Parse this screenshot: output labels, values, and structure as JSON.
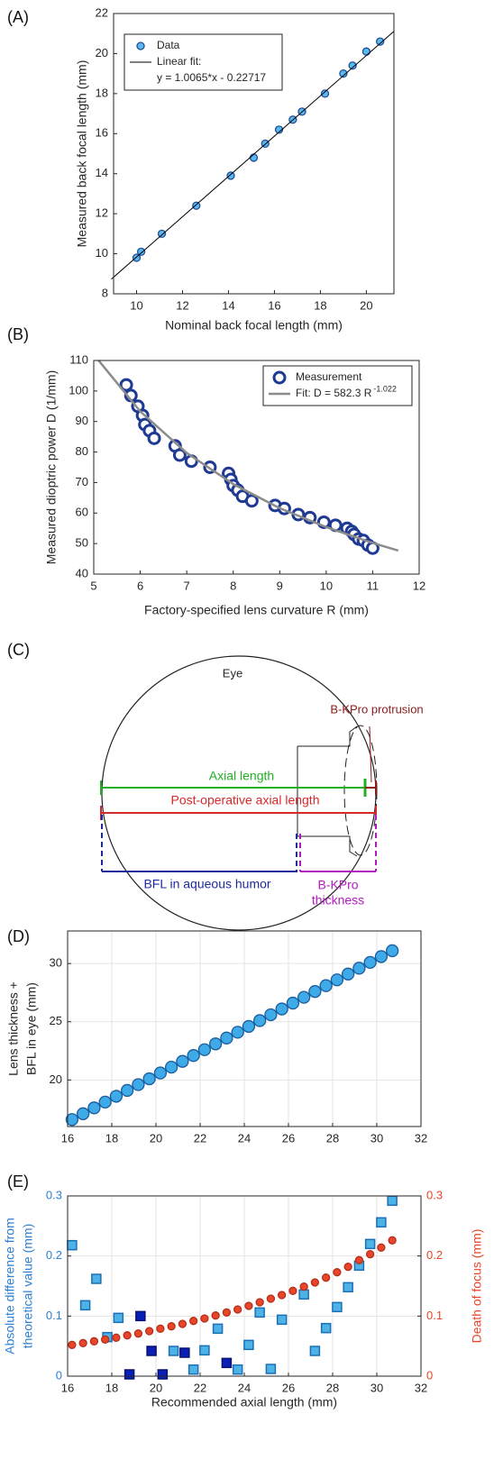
{
  "chart_data": [
    {
      "type": "scatter",
      "label": "(A)",
      "xlabel": "Nominal back focal length (mm)",
      "ylabel": [
        "Measured back focal length (mm)"
      ],
      "xlim": [
        9,
        21.2
      ],
      "ylim": [
        8,
        22
      ],
      "xticks": [
        10,
        12,
        14,
        16,
        18,
        20
      ],
      "yticks": [
        8,
        10,
        12,
        14,
        16,
        18,
        20,
        22
      ],
      "legend": "top-left",
      "legend_note": "y = 1.0065*x - 0.22717",
      "series": [
        {
          "name": "Data",
          "mode": "markers",
          "marker": "circle",
          "color": "#5ab8ec",
          "edgecolor": "#1f4e9a",
          "x": [
            10.0,
            10.2,
            11.1,
            12.6,
            14.1,
            15.1,
            15.6,
            16.2,
            16.8,
            17.2,
            18.2,
            19.0,
            19.4,
            20.0,
            20.6
          ],
          "values": [
            9.8,
            10.1,
            11.0,
            12.4,
            13.9,
            14.8,
            15.5,
            16.2,
            16.7,
            17.1,
            18.0,
            19.0,
            19.4,
            20.1,
            20.6
          ]
        },
        {
          "name": "Linear fit:",
          "mode": "line",
          "color": "#000000",
          "x": [
            8.9,
            21.2
          ],
          "values": [
            8.73,
            21.11
          ]
        }
      ]
    },
    {
      "type": "scatter",
      "label": "(B)",
      "xlabel": "Factory-specified lens curvature R (mm)",
      "ylabel": [
        "Measured dioptric power D (1/mm)"
      ],
      "xlim": [
        5,
        12
      ],
      "ylim": [
        40,
        110
      ],
      "xticks": [
        5,
        6,
        7,
        8,
        9,
        10,
        11,
        12
      ],
      "yticks": [
        40,
        50,
        60,
        70,
        80,
        90,
        100,
        110
      ],
      "legend": "top-right",
      "series": [
        {
          "name": "Measurement",
          "mode": "markers",
          "marker": "ring",
          "color": "#ffffff",
          "edgecolor": "#1f3a93",
          "x": [
            5.7,
            5.8,
            5.95,
            6.05,
            6.1,
            6.2,
            6.3,
            6.75,
            6.85,
            7.1,
            7.5,
            7.9,
            7.95,
            8.0,
            8.1,
            8.2,
            8.4,
            8.9,
            9.1,
            9.4,
            9.65,
            9.95,
            10.2,
            10.45,
            10.55,
            10.6,
            10.7,
            10.8,
            10.9,
            11.0
          ],
          "values": [
            102,
            98.5,
            95,
            92,
            89,
            87,
            84.5,
            82,
            79,
            77,
            75,
            73,
            71,
            69,
            67.5,
            65.5,
            64,
            62.5,
            61.5,
            59.5,
            58.5,
            57,
            56,
            55,
            54,
            53,
            51.5,
            51,
            49.5,
            48.5
          ]
        },
        {
          "name": "Fit: D = 582.3 R",
          "name_superscript": "-1.022",
          "mode": "line",
          "color": "#8c8c8c",
          "x": [
            5.1,
            6,
            7,
            8,
            9,
            10,
            11,
            11.55
          ],
          "values": [
            110.1,
            93.3,
            79.7,
            69.5,
            61.6,
            55.4,
            50.2,
            47.7
          ]
        }
      ]
    },
    {
      "type": "scatter",
      "label": "(D)",
      "ylabel": [
        "Lens thickness +",
        "BFL in eye (mm)"
      ],
      "xlim": [
        16,
        32
      ],
      "ylim": [
        16,
        32.8
      ],
      "xticks": [
        16,
        18,
        20,
        22,
        24,
        26,
        28,
        30,
        32
      ],
      "yticks": [
        20,
        25,
        30
      ],
      "grid": true,
      "series": [
        {
          "mode": "markers",
          "marker": "circle",
          "color": "#3faae8",
          "edgecolor": "#1b5c9c",
          "x": [
            16.2,
            16.7,
            17.2,
            17.7,
            18.2,
            18.7,
            19.2,
            19.7,
            20.2,
            20.7,
            21.2,
            21.7,
            22.2,
            22.7,
            23.2,
            23.7,
            24.2,
            24.7,
            25.2,
            25.7,
            26.2,
            26.7,
            27.2,
            27.7,
            28.2,
            28.7,
            29.2,
            29.7,
            30.2,
            30.7
          ],
          "values": [
            16.6,
            17.1,
            17.6,
            18.1,
            18.6,
            19.1,
            19.6,
            20.1,
            20.6,
            21.1,
            21.6,
            22.1,
            22.6,
            23.1,
            23.6,
            24.1,
            24.6,
            25.1,
            25.6,
            26.1,
            26.6,
            27.1,
            27.6,
            28.1,
            28.6,
            29.1,
            29.6,
            30.1,
            30.6,
            31.1
          ]
        }
      ]
    },
    {
      "type": "scatter",
      "label": "(E)",
      "xlabel": "Recommended axial length (mm)",
      "ylabel": [
        "Absolute difference from",
        "theoretical value (mm)"
      ],
      "y2label": "Death of focus (mm)",
      "ylabel_color": "#2d7fd2",
      "y2label_color": "#e8452a",
      "xlim": [
        16,
        32
      ],
      "ylim": [
        0,
        0.3
      ],
      "y2lim": [
        0,
        0.3
      ],
      "xticks": [
        16,
        18,
        20,
        22,
        24,
        26,
        28,
        30,
        32
      ],
      "yticks": [
        0,
        0.1,
        0.2,
        0.3
      ],
      "y2ticks": [
        0,
        0.1,
        0.2,
        0.3
      ],
      "grid": true,
      "series": [
        {
          "mode": "markers",
          "marker": "square",
          "color": "#4db3e6",
          "edgecolor": "#1d6fb5",
          "x": [
            16.2,
            16.8,
            17.3,
            17.8,
            18.3,
            20.8,
            21.7,
            22.2,
            22.8,
            23.7,
            24.2,
            24.7,
            25.2,
            25.7,
            26.7,
            27.2,
            27.7,
            28.2,
            28.7,
            29.2,
            29.7,
            30.2,
            30.7
          ],
          "values": [
            0.218,
            0.118,
            0.162,
            0.065,
            0.097,
            0.042,
            0.011,
            0.043,
            0.079,
            0.011,
            0.052,
            0.106,
            0.012,
            0.094,
            0.136,
            0.042,
            0.08,
            0.115,
            0.148,
            0.184,
            0.22,
            0.256,
            0.292
          ]
        },
        {
          "mode": "markers",
          "marker": "square",
          "color": "#0a1fb5",
          "edgecolor": "#061270",
          "x": [
            18.8,
            19.3,
            19.8,
            20.3,
            21.3,
            23.2
          ],
          "values": [
            0.003,
            0.1,
            0.042,
            0.003,
            0.039,
            0.022
          ]
        },
        {
          "mode": "markers",
          "marker": "circle",
          "axis": "y2",
          "color": "#e8452a",
          "edgecolor": "#b3301a",
          "x": [
            16.2,
            16.7,
            17.2,
            17.7,
            18.2,
            18.7,
            19.2,
            19.7,
            20.2,
            20.7,
            21.2,
            21.7,
            22.2,
            22.7,
            23.2,
            23.7,
            24.2,
            24.7,
            25.2,
            25.7,
            26.2,
            26.7,
            27.2,
            27.7,
            28.2,
            28.7,
            29.2,
            29.7,
            30.2,
            30.7
          ],
          "values": [
            0.052,
            0.055,
            0.058,
            0.061,
            0.064,
            0.068,
            0.071,
            0.075,
            0.079,
            0.083,
            0.087,
            0.092,
            0.096,
            0.101,
            0.106,
            0.111,
            0.117,
            0.123,
            0.129,
            0.135,
            0.142,
            0.149,
            0.156,
            0.164,
            0.173,
            0.182,
            0.193,
            0.203,
            0.214,
            0.226
          ]
        }
      ]
    }
  ],
  "diagram": {
    "label": "(C)",
    "eye": "Eye",
    "protrusion": "B-KPro protrusion",
    "axial_length": "Axial length",
    "postop_axial_length": "Post-operative axial length",
    "bfl": "BFL in aqueous humor",
    "thickness": [
      "B-KPro",
      "thickness"
    ]
  }
}
